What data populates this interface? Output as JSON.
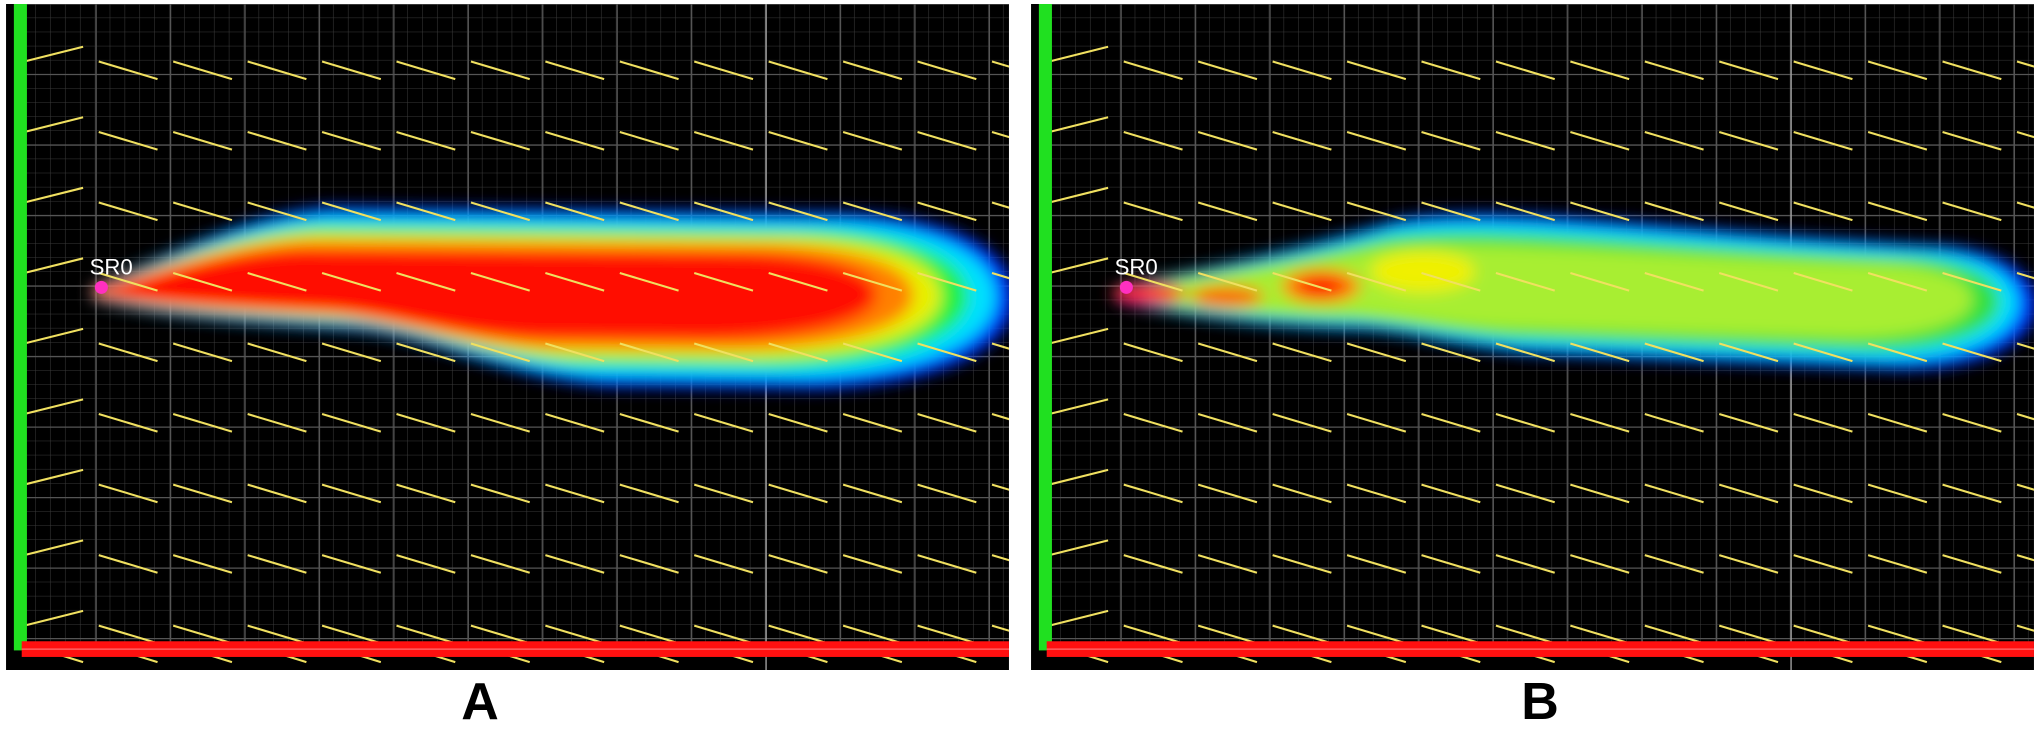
{
  "panels": [
    {
      "source_label": "SR0",
      "caption": "A"
    },
    {
      "source_label": "SR0",
      "caption": "B"
    }
  ]
}
